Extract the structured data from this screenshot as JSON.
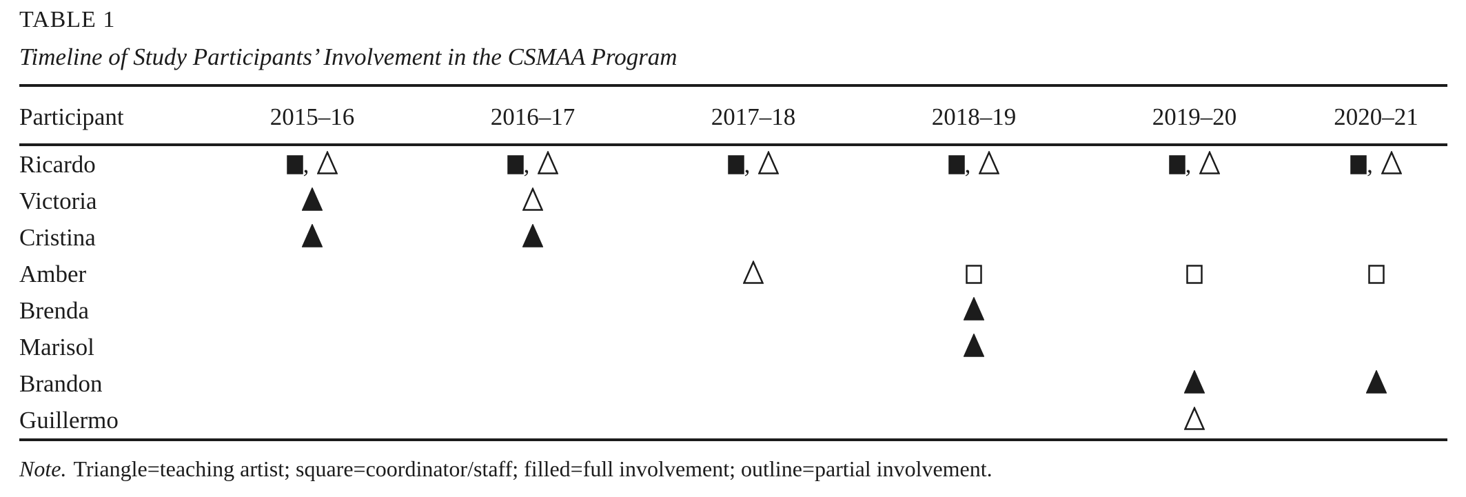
{
  "page": {
    "background_color": "#ffffff",
    "text_color": "#1c1c1c"
  },
  "table": {
    "label": "TABLE 1",
    "title": "Timeline of Study Participants’ Involvement in the CSMAA Program",
    "columns": [
      "Participant",
      "2015–16",
      "2016–17",
      "2017–18",
      "2018–19",
      "2019–20",
      "2020–21"
    ],
    "cell_separator": ",",
    "symbols": {
      "filled-square": "■",
      "outline-square": "□",
      "filled-triangle": "▲",
      "outline-triangle": "△"
    },
    "rows": [
      {
        "participant": "Ricardo",
        "cells": [
          [
            "filled-square",
            "outline-triangle"
          ],
          [
            "filled-square",
            "outline-triangle"
          ],
          [
            "filled-square",
            "outline-triangle"
          ],
          [
            "filled-square",
            "outline-triangle"
          ],
          [
            "filled-square",
            "outline-triangle"
          ],
          [
            "filled-square",
            "outline-triangle"
          ]
        ]
      },
      {
        "participant": "Victoria",
        "cells": [
          [
            "filled-triangle"
          ],
          [
            "outline-triangle"
          ],
          [],
          [],
          [],
          []
        ]
      },
      {
        "participant": "Cristina",
        "cells": [
          [
            "filled-triangle"
          ],
          [
            "filled-triangle"
          ],
          [],
          [],
          [],
          []
        ]
      },
      {
        "participant": "Amber",
        "cells": [
          [],
          [],
          [
            "outline-triangle"
          ],
          [
            "outline-square"
          ],
          [
            "outline-square"
          ],
          [
            "outline-square"
          ]
        ]
      },
      {
        "participant": "Brenda",
        "cells": [
          [],
          [],
          [],
          [
            "filled-triangle"
          ],
          [],
          []
        ]
      },
      {
        "participant": "Marisol",
        "cells": [
          [],
          [],
          [],
          [
            "filled-triangle"
          ],
          [],
          []
        ]
      },
      {
        "participant": "Brandon",
        "cells": [
          [],
          [],
          [],
          [],
          [
            "filled-triangle"
          ],
          [
            "filled-triangle"
          ]
        ]
      },
      {
        "participant": "Guillermo",
        "cells": [
          [],
          [],
          [],
          [],
          [
            "outline-triangle"
          ],
          []
        ]
      }
    ],
    "note_label": "Note.",
    "note_text": "Triangle=teaching artist; square=coordinator/staff; filled=full involvement; outline=partial involvement."
  }
}
